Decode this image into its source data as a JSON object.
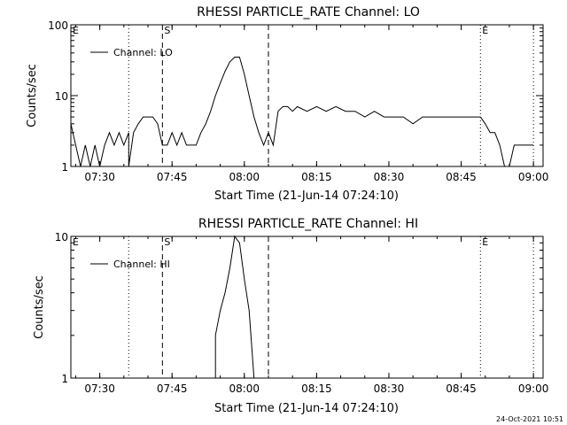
{
  "footer": {
    "timestamp": "24-Oct-2021 10:51"
  },
  "chart_data": [
    {
      "type": "line",
      "title": "RHESSI PARTICLE_RATE Channel: LO",
      "xlabel": "Start Time (21-Jun-14 07:24:10)",
      "ylabel": "Counts/sec",
      "yscale": "log",
      "xlim": [
        "07:24",
        "09:02"
      ],
      "ylim": [
        1,
        100
      ],
      "xticks": [
        "07:30",
        "07:45",
        "08:00",
        "08:15",
        "08:30",
        "08:45",
        "09:00"
      ],
      "yticks": [
        "1",
        "10",
        "100"
      ],
      "legend": "Channel: LO",
      "legend_position": "top-left",
      "grid": false,
      "markers": [
        {
          "label": "E",
          "time": "07:24",
          "style": "none"
        },
        {
          "label": "",
          "time": "07:36",
          "style": "dotted"
        },
        {
          "label": "S",
          "time": "07:43",
          "style": "dashed"
        },
        {
          "label": "",
          "time": "08:05",
          "style": "dashed"
        },
        {
          "label": "E",
          "time": "08:49",
          "style": "dotted"
        },
        {
          "label": "",
          "time": "09:00",
          "style": "dotted"
        }
      ],
      "series": [
        {
          "name": "Channel: LO",
          "points": [
            [
              "07:24",
              4
            ],
            [
              "07:25",
              2
            ],
            [
              "07:26",
              1
            ],
            [
              "07:27",
              2
            ],
            [
              "07:28",
              1
            ],
            [
              "07:29",
              2
            ],
            [
              "07:30",
              1
            ],
            [
              "07:31",
              2
            ],
            [
              "07:32",
              3
            ],
            [
              "07:33",
              2
            ],
            [
              "07:34",
              3
            ],
            [
              "07:35",
              2
            ],
            [
              "07:36",
              3
            ],
            [
              "07:36",
              1
            ],
            [
              "07:37",
              3
            ],
            [
              "07:38",
              4
            ],
            [
              "07:39",
              5
            ],
            [
              "07:40",
              5
            ],
            [
              "07:41",
              5
            ],
            [
              "07:42",
              4
            ],
            [
              "07:43",
              2
            ],
            [
              "07:44",
              2
            ],
            [
              "07:45",
              3
            ],
            [
              "07:46",
              2
            ],
            [
              "07:47",
              3
            ],
            [
              "07:48",
              2
            ],
            [
              "07:49",
              2
            ],
            [
              "07:50",
              2
            ],
            [
              "07:51",
              3
            ],
            [
              "07:52",
              4
            ],
            [
              "07:53",
              6
            ],
            [
              "07:54",
              10
            ],
            [
              "07:55",
              15
            ],
            [
              "07:56",
              22
            ],
            [
              "07:57",
              30
            ],
            [
              "07:58",
              35
            ],
            [
              "07:59",
              35
            ],
            [
              "08:00",
              20
            ],
            [
              "08:01",
              10
            ],
            [
              "08:02",
              5
            ],
            [
              "08:03",
              3
            ],
            [
              "08:04",
              2
            ],
            [
              "08:05",
              3
            ],
            [
              "08:06",
              2
            ],
            [
              "08:07",
              6
            ],
            [
              "08:08",
              7
            ],
            [
              "08:09",
              7
            ],
            [
              "08:10",
              6
            ],
            [
              "08:11",
              7
            ],
            [
              "08:13",
              6
            ],
            [
              "08:15",
              7
            ],
            [
              "08:17",
              6
            ],
            [
              "08:19",
              7
            ],
            [
              "08:21",
              6
            ],
            [
              "08:23",
              6
            ],
            [
              "08:25",
              5
            ],
            [
              "08:27",
              6
            ],
            [
              "08:29",
              5
            ],
            [
              "08:31",
              5
            ],
            [
              "08:33",
              5
            ],
            [
              "08:35",
              4
            ],
            [
              "08:37",
              5
            ],
            [
              "08:39",
              5
            ],
            [
              "08:41",
              5
            ],
            [
              "08:43",
              5
            ],
            [
              "08:45",
              5
            ],
            [
              "08:47",
              5
            ],
            [
              "08:49",
              5
            ],
            [
              "08:50",
              4
            ],
            [
              "08:51",
              3
            ],
            [
              "08:52",
              3
            ],
            [
              "08:53",
              2
            ],
            [
              "08:54",
              1
            ],
            [
              "08:55",
              1
            ],
            [
              "08:56",
              2
            ],
            [
              "08:58",
              2
            ],
            [
              "09:00",
              2
            ]
          ]
        }
      ]
    },
    {
      "type": "line",
      "title": "RHESSI PARTICLE_RATE Channel: HI",
      "xlabel": "Start Time (21-Jun-14 07:24:10)",
      "ylabel": "Counts/sec",
      "yscale": "log",
      "xlim": [
        "07:24",
        "09:02"
      ],
      "ylim": [
        1,
        10
      ],
      "xticks": [
        "07:30",
        "07:45",
        "08:00",
        "08:15",
        "08:30",
        "08:45",
        "09:00"
      ],
      "yticks": [
        "1",
        "10"
      ],
      "legend": "Channel: HI",
      "legend_position": "top-left",
      "grid": false,
      "markers": [
        {
          "label": "E",
          "time": "07:24",
          "style": "none"
        },
        {
          "label": "",
          "time": "07:36",
          "style": "dotted"
        },
        {
          "label": "S",
          "time": "07:43",
          "style": "dashed"
        },
        {
          "label": "",
          "time": "08:05",
          "style": "dashed"
        },
        {
          "label": "E",
          "time": "08:49",
          "style": "dotted"
        },
        {
          "label": "",
          "time": "09:00",
          "style": "dotted"
        }
      ],
      "series": [
        {
          "name": "Channel: HI",
          "points": [
            [
              "07:54",
              1
            ],
            [
              "07:54",
              2
            ],
            [
              "07:55",
              3
            ],
            [
              "07:56",
              4
            ],
            [
              "07:57",
              6
            ],
            [
              "07:58",
              10
            ],
            [
              "07:59",
              9
            ],
            [
              "08:00",
              5
            ],
            [
              "08:01",
              3
            ],
            [
              "08:02",
              1
            ]
          ]
        }
      ]
    }
  ]
}
